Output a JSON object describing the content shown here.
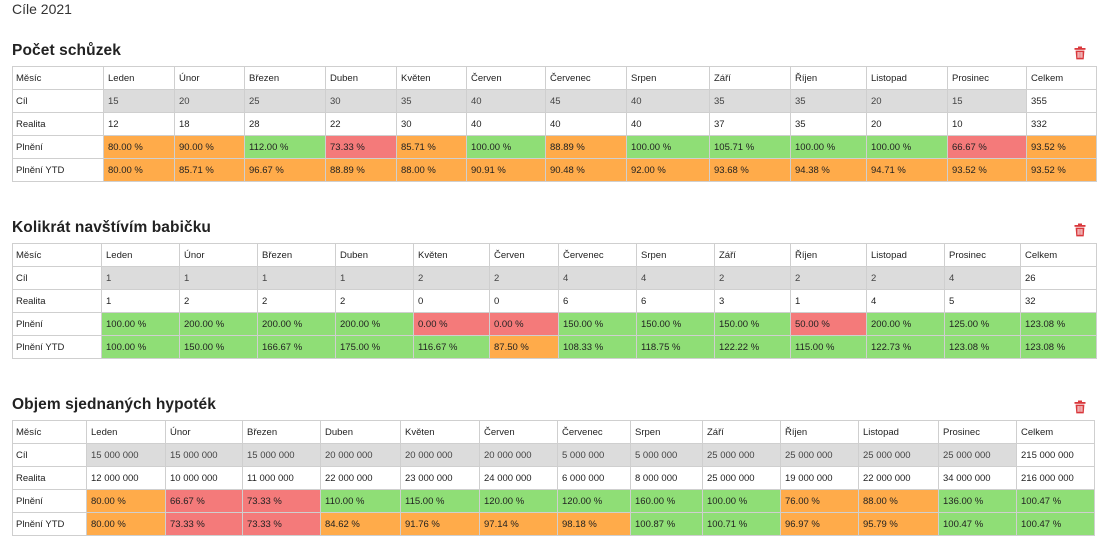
{
  "page": {
    "title": "Cíle 2021"
  },
  "colors": {
    "green": "#8fde76",
    "orange": "#ffab4a",
    "red": "#f47a7a",
    "grey": "#dcdcdc",
    "trash": "#d9383c"
  },
  "sections": [
    {
      "title": "Počet schůzek",
      "delete_icon": "trash-icon",
      "header": [
        "Měsíc",
        "Leden",
        "Únor",
        "Březen",
        "Duben",
        "Květen",
        "Červen",
        "Červenec",
        "Srpen",
        "Září",
        "Říjen",
        "Listopad",
        "Prosinec",
        "Celkem"
      ],
      "rows": [
        {
          "label": "Cíl",
          "cells": [
            {
              "v": "15",
              "c": "grey"
            },
            {
              "v": "20",
              "c": "grey"
            },
            {
              "v": "25",
              "c": "grey"
            },
            {
              "v": "30",
              "c": "grey"
            },
            {
              "v": "35",
              "c": "grey"
            },
            {
              "v": "40",
              "c": "grey"
            },
            {
              "v": "45",
              "c": "grey"
            },
            {
              "v": "40",
              "c": "grey"
            },
            {
              "v": "35",
              "c": "grey"
            },
            {
              "v": "35",
              "c": "grey"
            },
            {
              "v": "20",
              "c": "grey"
            },
            {
              "v": "15",
              "c": "grey"
            },
            {
              "v": "355",
              "c": "total"
            }
          ]
        },
        {
          "label": "Realita",
          "cells": [
            {
              "v": "12",
              "c": "plain"
            },
            {
              "v": "18",
              "c": "plain"
            },
            {
              "v": "28",
              "c": "plain"
            },
            {
              "v": "22",
              "c": "plain"
            },
            {
              "v": "30",
              "c": "plain"
            },
            {
              "v": "40",
              "c": "plain"
            },
            {
              "v": "40",
              "c": "plain"
            },
            {
              "v": "40",
              "c": "plain"
            },
            {
              "v": "37",
              "c": "plain"
            },
            {
              "v": "35",
              "c": "plain"
            },
            {
              "v": "20",
              "c": "plain"
            },
            {
              "v": "10",
              "c": "plain"
            },
            {
              "v": "332",
              "c": "total"
            }
          ]
        },
        {
          "label": "Plnění",
          "cells": [
            {
              "v": "80.00 %",
              "c": "orange"
            },
            {
              "v": "90.00 %",
              "c": "orange"
            },
            {
              "v": "112.00 %",
              "c": "green"
            },
            {
              "v": "73.33 %",
              "c": "red"
            },
            {
              "v": "85.71 %",
              "c": "orange"
            },
            {
              "v": "100.00 %",
              "c": "green"
            },
            {
              "v": "88.89 %",
              "c": "orange"
            },
            {
              "v": "100.00 %",
              "c": "green"
            },
            {
              "v": "105.71 %",
              "c": "green"
            },
            {
              "v": "100.00 %",
              "c": "green"
            },
            {
              "v": "100.00 %",
              "c": "green"
            },
            {
              "v": "66.67 %",
              "c": "red"
            },
            {
              "v": "93.52 %",
              "c": "orange"
            }
          ]
        },
        {
          "label": "Plnění YTD",
          "cells": [
            {
              "v": "80.00 %",
              "c": "orange"
            },
            {
              "v": "85.71 %",
              "c": "orange"
            },
            {
              "v": "96.67 %",
              "c": "orange"
            },
            {
              "v": "88.89 %",
              "c": "orange"
            },
            {
              "v": "88.00 %",
              "c": "orange"
            },
            {
              "v": "90.91 %",
              "c": "orange"
            },
            {
              "v": "90.48 %",
              "c": "orange"
            },
            {
              "v": "92.00 %",
              "c": "orange"
            },
            {
              "v": "93.68 %",
              "c": "orange"
            },
            {
              "v": "94.38 %",
              "c": "orange"
            },
            {
              "v": "94.71 %",
              "c": "orange"
            },
            {
              "v": "93.52 %",
              "c": "orange"
            },
            {
              "v": "93.52 %",
              "c": "orange"
            }
          ]
        }
      ]
    },
    {
      "title": "Kolikrát navštívím babičku",
      "delete_icon": "trash-icon",
      "header": [
        "Měsíc",
        "Leden",
        "Únor",
        "Březen",
        "Duben",
        "Květen",
        "Červen",
        "Červenec",
        "Srpen",
        "Září",
        "Říjen",
        "Listopad",
        "Prosinec",
        "Celkem"
      ],
      "rows": [
        {
          "label": "Cíl",
          "cells": [
            {
              "v": "1",
              "c": "grey"
            },
            {
              "v": "1",
              "c": "grey"
            },
            {
              "v": "1",
              "c": "grey"
            },
            {
              "v": "1",
              "c": "grey"
            },
            {
              "v": "2",
              "c": "grey"
            },
            {
              "v": "2",
              "c": "grey"
            },
            {
              "v": "4",
              "c": "grey"
            },
            {
              "v": "4",
              "c": "grey"
            },
            {
              "v": "2",
              "c": "grey"
            },
            {
              "v": "2",
              "c": "grey"
            },
            {
              "v": "2",
              "c": "grey"
            },
            {
              "v": "4",
              "c": "grey"
            },
            {
              "v": "26",
              "c": "total"
            }
          ]
        },
        {
          "label": "Realita",
          "cells": [
            {
              "v": "1",
              "c": "plain"
            },
            {
              "v": "2",
              "c": "plain"
            },
            {
              "v": "2",
              "c": "plain"
            },
            {
              "v": "2",
              "c": "plain"
            },
            {
              "v": "0",
              "c": "plain"
            },
            {
              "v": "0",
              "c": "plain"
            },
            {
              "v": "6",
              "c": "plain"
            },
            {
              "v": "6",
              "c": "plain"
            },
            {
              "v": "3",
              "c": "plain"
            },
            {
              "v": "1",
              "c": "plain"
            },
            {
              "v": "4",
              "c": "plain"
            },
            {
              "v": "5",
              "c": "plain"
            },
            {
              "v": "32",
              "c": "total"
            }
          ]
        },
        {
          "label": "Plnění",
          "cells": [
            {
              "v": "100.00 %",
              "c": "green"
            },
            {
              "v": "200.00 %",
              "c": "green"
            },
            {
              "v": "200.00 %",
              "c": "green"
            },
            {
              "v": "200.00 %",
              "c": "green"
            },
            {
              "v": "0.00 %",
              "c": "red"
            },
            {
              "v": "0.00 %",
              "c": "red"
            },
            {
              "v": "150.00 %",
              "c": "green"
            },
            {
              "v": "150.00 %",
              "c": "green"
            },
            {
              "v": "150.00 %",
              "c": "green"
            },
            {
              "v": "50.00 %",
              "c": "red"
            },
            {
              "v": "200.00 %",
              "c": "green"
            },
            {
              "v": "125.00 %",
              "c": "green"
            },
            {
              "v": "123.08 %",
              "c": "green"
            }
          ]
        },
        {
          "label": "Plnění YTD",
          "cells": [
            {
              "v": "100.00 %",
              "c": "green"
            },
            {
              "v": "150.00 %",
              "c": "green"
            },
            {
              "v": "166.67 %",
              "c": "green"
            },
            {
              "v": "175.00 %",
              "c": "green"
            },
            {
              "v": "116.67 %",
              "c": "green"
            },
            {
              "v": "87.50 %",
              "c": "orange"
            },
            {
              "v": "108.33 %",
              "c": "green"
            },
            {
              "v": "118.75 %",
              "c": "green"
            },
            {
              "v": "122.22 %",
              "c": "green"
            },
            {
              "v": "115.00 %",
              "c": "green"
            },
            {
              "v": "122.73 %",
              "c": "green"
            },
            {
              "v": "123.08 %",
              "c": "green"
            },
            {
              "v": "123.08 %",
              "c": "green"
            }
          ]
        }
      ]
    },
    {
      "title": "Objem sjednaných hypoték",
      "delete_icon": "trash-icon",
      "header": [
        "Měsíc",
        "Leden",
        "Únor",
        "Březen",
        "Duben",
        "Květen",
        "Červen",
        "Červenec",
        "Srpen",
        "Září",
        "Říjen",
        "Listopad",
        "Prosinec",
        "Celkem"
      ],
      "rows": [
        {
          "label": "Cíl",
          "cells": [
            {
              "v": "15 000 000",
              "c": "grey"
            },
            {
              "v": "15 000 000",
              "c": "grey"
            },
            {
              "v": "15 000 000",
              "c": "grey"
            },
            {
              "v": "20 000 000",
              "c": "grey"
            },
            {
              "v": "20 000 000",
              "c": "grey"
            },
            {
              "v": "20 000 000",
              "c": "grey"
            },
            {
              "v": "5 000 000",
              "c": "grey"
            },
            {
              "v": "5 000 000",
              "c": "grey"
            },
            {
              "v": "25 000 000",
              "c": "grey"
            },
            {
              "v": "25 000 000",
              "c": "grey"
            },
            {
              "v": "25 000 000",
              "c": "grey"
            },
            {
              "v": "25 000 000",
              "c": "grey"
            },
            {
              "v": "215 000 000",
              "c": "total"
            }
          ]
        },
        {
          "label": "Realita",
          "cells": [
            {
              "v": "12 000 000",
              "c": "plain"
            },
            {
              "v": "10 000 000",
              "c": "plain"
            },
            {
              "v": "11 000 000",
              "c": "plain"
            },
            {
              "v": "22 000 000",
              "c": "plain"
            },
            {
              "v": "23 000 000",
              "c": "plain"
            },
            {
              "v": "24 000 000",
              "c": "plain"
            },
            {
              "v": "6 000 000",
              "c": "plain"
            },
            {
              "v": "8 000 000",
              "c": "plain"
            },
            {
              "v": "25 000 000",
              "c": "plain"
            },
            {
              "v": "19 000 000",
              "c": "plain"
            },
            {
              "v": "22 000 000",
              "c": "plain"
            },
            {
              "v": "34 000 000",
              "c": "plain"
            },
            {
              "v": "216 000 000",
              "c": "total"
            }
          ]
        },
        {
          "label": "Plnění",
          "cells": [
            {
              "v": "80.00 %",
              "c": "orange"
            },
            {
              "v": "66.67 %",
              "c": "red"
            },
            {
              "v": "73.33 %",
              "c": "red"
            },
            {
              "v": "110.00 %",
              "c": "green"
            },
            {
              "v": "115.00 %",
              "c": "green"
            },
            {
              "v": "120.00 %",
              "c": "green"
            },
            {
              "v": "120.00 %",
              "c": "green"
            },
            {
              "v": "160.00 %",
              "c": "green"
            },
            {
              "v": "100.00 %",
              "c": "green"
            },
            {
              "v": "76.00 %",
              "c": "orange"
            },
            {
              "v": "88.00 %",
              "c": "orange"
            },
            {
              "v": "136.00 %",
              "c": "green"
            },
            {
              "v": "100.47 %",
              "c": "green"
            }
          ]
        },
        {
          "label": "Plnění YTD",
          "cells": [
            {
              "v": "80.00 %",
              "c": "orange"
            },
            {
              "v": "73.33 %",
              "c": "red"
            },
            {
              "v": "73.33 %",
              "c": "red"
            },
            {
              "v": "84.62 %",
              "c": "orange"
            },
            {
              "v": "91.76 %",
              "c": "orange"
            },
            {
              "v": "97.14 %",
              "c": "orange"
            },
            {
              "v": "98.18 %",
              "c": "orange"
            },
            {
              "v": "100.87 %",
              "c": "green"
            },
            {
              "v": "100.71 %",
              "c": "green"
            },
            {
              "v": "96.97 %",
              "c": "orange"
            },
            {
              "v": "95.79 %",
              "c": "orange"
            },
            {
              "v": "100.47 %",
              "c": "green"
            },
            {
              "v": "100.47 %",
              "c": "green"
            }
          ]
        }
      ]
    }
  ]
}
